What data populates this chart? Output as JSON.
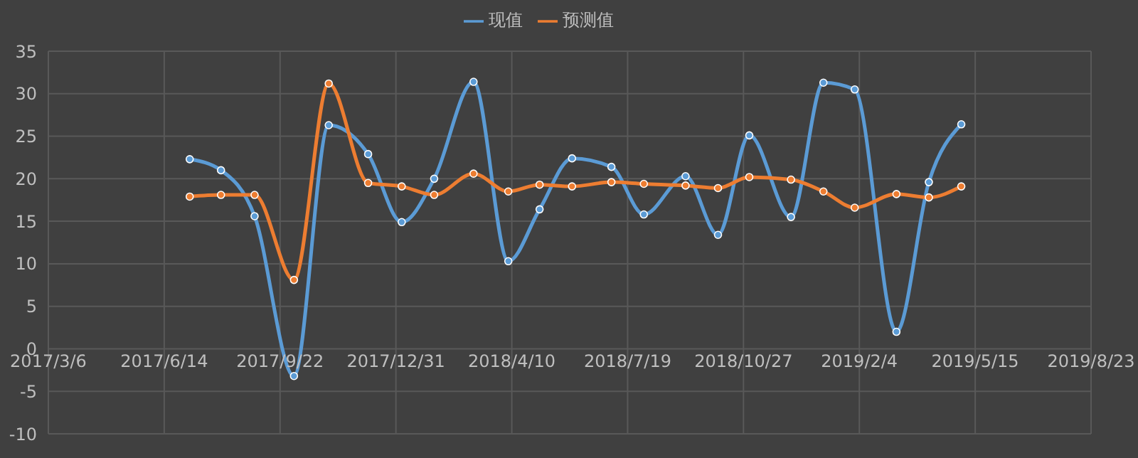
{
  "chart_data": {
    "type": "line",
    "x": [
      "2017-07-06",
      "2017-08-02",
      "2017-08-31",
      "2017-10-04",
      "2017-11-03",
      "2017-12-07",
      "2018-01-05",
      "2018-02-02",
      "2018-03-08",
      "2018-04-07",
      "2018-05-04",
      "2018-06-01",
      "2018-07-05",
      "2018-08-02",
      "2018-09-07",
      "2018-10-05",
      "2018-11-01",
      "2018-12-07",
      "2019-01-04",
      "2019-01-31",
      "2019-03-08",
      "2019-04-05",
      "2019-05-03"
    ],
    "series": [
      {
        "name": "现值",
        "color": "#5b9bd5",
        "values": [
          22.3,
          21.0,
          15.6,
          -3.2,
          26.3,
          22.9,
          14.9,
          20.0,
          31.4,
          10.3,
          16.4,
          22.4,
          21.4,
          15.8,
          20.3,
          13.4,
          25.1,
          15.5,
          31.3,
          30.5,
          2.0,
          19.6,
          26.4
        ]
      },
      {
        "name": "预测值",
        "color": "#ed7d31",
        "values": [
          17.9,
          18.1,
          18.1,
          8.1,
          31.2,
          19.5,
          19.1,
          18.1,
          20.6,
          18.5,
          19.3,
          19.1,
          19.6,
          19.4,
          19.2,
          18.9,
          20.2,
          19.9,
          18.5,
          16.6,
          18.2,
          17.8,
          19.1
        ]
      }
    ],
    "xlim": [
      "2017-03-06",
      "2019-08-23"
    ],
    "xticks": [
      {
        "value": "2017-03-06",
        "label": "2017/3/6"
      },
      {
        "value": "2017-06-14",
        "label": "2017/6/14"
      },
      {
        "value": "2017-09-22",
        "label": "2017/9/22"
      },
      {
        "value": "2017-12-31",
        "label": "2017/12/31"
      },
      {
        "value": "2018-04-10",
        "label": "2018/4/10"
      },
      {
        "value": "2018-07-19",
        "label": "2018/7/19"
      },
      {
        "value": "2018-10-27",
        "label": "2018/10/27"
      },
      {
        "value": "2019-02-04",
        "label": "2019/2/4"
      },
      {
        "value": "2019-05-15",
        "label": "2019/5/15"
      },
      {
        "value": "2019-08-23",
        "label": "2019/8/23"
      }
    ],
    "ylim": [
      -10,
      35
    ],
    "yticks": [
      -10,
      -5,
      0,
      5,
      10,
      15,
      20,
      25,
      30,
      35
    ],
    "grid": true,
    "legend": "top",
    "marker": "circle",
    "line_style": "solid"
  }
}
